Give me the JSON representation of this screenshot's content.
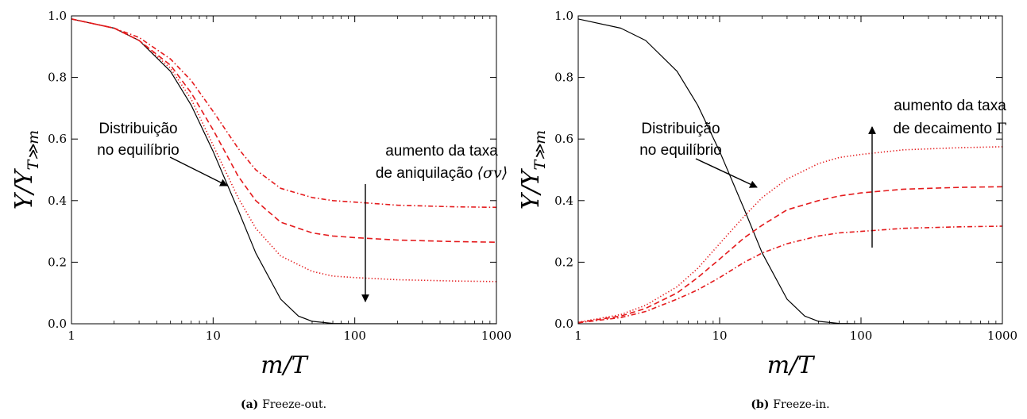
{
  "chart_data": [
    {
      "type": "line",
      "panel_label": "(a)",
      "caption": "Freeze-out.",
      "xlabel": "m/T",
      "ylabel": "Y/Y_{T≫m}",
      "xscale": "log",
      "xlim": [
        1,
        1000
      ],
      "ylim": [
        0,
        1
      ],
      "xticks": [
        1,
        10,
        100,
        1000
      ],
      "xtick_labels": [
        "1",
        "10",
        "100",
        "1000"
      ],
      "yticks": [
        0,
        0.2,
        0.4,
        0.6,
        0.8,
        1.0
      ],
      "ytick_labels": [
        "0.0",
        "0.2",
        "0.4",
        "0.6",
        "0.8",
        "1.0"
      ],
      "grid": false,
      "annotations": {
        "equilibrium_line1": "Distribuição",
        "equilibrium_line2": "no equilíbrio",
        "trend_line1": "aumento da taxa",
        "trend_line2": "de aniquilação",
        "trend_symbol": "⟨σv⟩",
        "arrow_direction": "down"
      },
      "series": [
        {
          "style": "solid",
          "color": "#000000",
          "x": [
            1,
            2,
            3,
            5,
            7,
            10,
            15,
            20,
            30,
            40,
            50,
            70,
            100,
            1000
          ],
          "y": [
            0.99,
            0.96,
            0.92,
            0.82,
            0.71,
            0.56,
            0.37,
            0.23,
            0.08,
            0.025,
            0.008,
            0.001,
            0.0,
            0.0
          ]
        },
        {
          "style": "dotted",
          "color": "#e41a1c",
          "x": [
            1,
            2,
            3,
            5,
            7,
            10,
            15,
            20,
            30,
            50,
            70,
            100,
            200,
            500,
            1000
          ],
          "y": [
            0.99,
            0.96,
            0.92,
            0.83,
            0.73,
            0.58,
            0.41,
            0.31,
            0.22,
            0.17,
            0.155,
            0.15,
            0.143,
            0.139,
            0.137
          ]
        },
        {
          "style": "dashed",
          "color": "#e41a1c",
          "x": [
            1,
            2,
            3,
            5,
            7,
            10,
            15,
            20,
            30,
            50,
            70,
            100,
            200,
            500,
            1000
          ],
          "y": [
            0.99,
            0.96,
            0.92,
            0.84,
            0.75,
            0.63,
            0.48,
            0.4,
            0.33,
            0.295,
            0.285,
            0.28,
            0.272,
            0.267,
            0.265
          ]
        },
        {
          "style": "dashdot",
          "color": "#e41a1c",
          "x": [
            1,
            2,
            3,
            5,
            7,
            10,
            15,
            20,
            30,
            50,
            70,
            100,
            200,
            500,
            1000
          ],
          "y": [
            0.99,
            0.96,
            0.93,
            0.86,
            0.79,
            0.69,
            0.57,
            0.5,
            0.44,
            0.41,
            0.4,
            0.395,
            0.385,
            0.38,
            0.378
          ]
        }
      ]
    },
    {
      "type": "line",
      "panel_label": "(b)",
      "caption": "Freeze-in.",
      "xlabel": "m/T",
      "ylabel": "Y/Y_{T≫m}",
      "xscale": "log",
      "xlim": [
        1,
        1000
      ],
      "ylim": [
        0,
        1
      ],
      "xticks": [
        1,
        10,
        100,
        1000
      ],
      "xtick_labels": [
        "1",
        "10",
        "100",
        "1000"
      ],
      "yticks": [
        0,
        0.2,
        0.4,
        0.6,
        0.8,
        1.0
      ],
      "ytick_labels": [
        "0.0",
        "0.2",
        "0.4",
        "0.6",
        "0.8",
        "1.0"
      ],
      "grid": false,
      "annotations": {
        "equilibrium_line1": "Distribuição",
        "equilibrium_line2": "no equilíbrio",
        "trend_line1": "aumento da taxa",
        "trend_line2": "de decaimento",
        "trend_symbol": "Γ",
        "arrow_direction": "up"
      },
      "series": [
        {
          "style": "solid",
          "color": "#000000",
          "x": [
            1,
            2,
            3,
            5,
            7,
            10,
            15,
            20,
            30,
            40,
            50,
            70,
            100,
            1000
          ],
          "y": [
            0.99,
            0.96,
            0.92,
            0.82,
            0.71,
            0.56,
            0.37,
            0.23,
            0.08,
            0.025,
            0.008,
            0.001,
            0.0,
            0.0
          ]
        },
        {
          "style": "dotted",
          "color": "#e41a1c",
          "x": [
            1,
            2,
            3,
            5,
            7,
            10,
            15,
            20,
            30,
            50,
            70,
            100,
            200,
            500,
            1000
          ],
          "y": [
            0.005,
            0.03,
            0.06,
            0.12,
            0.18,
            0.26,
            0.35,
            0.41,
            0.47,
            0.52,
            0.54,
            0.55,
            0.565,
            0.572,
            0.575
          ]
        },
        {
          "style": "dashed",
          "color": "#e41a1c",
          "x": [
            1,
            2,
            3,
            5,
            7,
            10,
            15,
            20,
            30,
            50,
            70,
            100,
            200,
            500,
            1000
          ],
          "y": [
            0.004,
            0.025,
            0.05,
            0.1,
            0.15,
            0.21,
            0.28,
            0.32,
            0.37,
            0.4,
            0.415,
            0.425,
            0.437,
            0.443,
            0.445
          ]
        },
        {
          "style": "dashdot",
          "color": "#e41a1c",
          "x": [
            1,
            2,
            3,
            5,
            7,
            10,
            15,
            20,
            30,
            50,
            70,
            100,
            200,
            500,
            1000
          ],
          "y": [
            0.003,
            0.02,
            0.04,
            0.08,
            0.11,
            0.15,
            0.2,
            0.23,
            0.26,
            0.285,
            0.295,
            0.3,
            0.31,
            0.315,
            0.317
          ]
        }
      ]
    }
  ]
}
